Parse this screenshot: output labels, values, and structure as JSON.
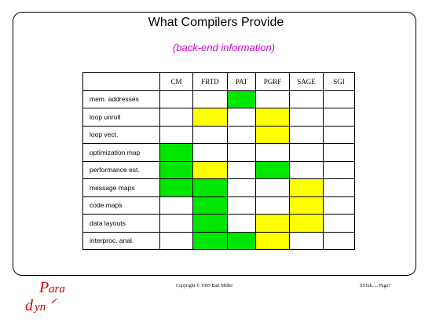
{
  "title": "What Compilers Provide",
  "subtitle": "(back-end information)",
  "columns": [
    "CM",
    "FRTD",
    "PAT",
    "PGRF",
    "SAGE",
    "SGI"
  ],
  "rows": [
    {
      "label": "mem. addresses",
      "cells": [
        "",
        "",
        "green",
        "",
        "",
        ""
      ]
    },
    {
      "label": "loop unroll",
      "cells": [
        "",
        "yellow",
        "",
        "yellow",
        "",
        ""
      ]
    },
    {
      "label": "loop vect.",
      "cells": [
        "",
        "",
        "",
        "yellow",
        "",
        ""
      ]
    },
    {
      "label": "optimization map",
      "cells": [
        "green",
        "",
        "",
        "",
        "",
        ""
      ]
    },
    {
      "label": "performance est.",
      "cells": [
        "green",
        "yellow",
        "",
        "green",
        "",
        ""
      ]
    },
    {
      "label": "message maps",
      "cells": [
        "green",
        "green",
        "",
        "",
        "yellow",
        ""
      ]
    },
    {
      "label": "code maps",
      "cells": [
        "",
        "green",
        "",
        "",
        "yellow",
        ""
      ]
    },
    {
      "label": "data layouts",
      "cells": [
        "",
        "green",
        "",
        "yellow",
        "yellow",
        ""
      ]
    },
    {
      "label": "interproc. anal.",
      "cells": [
        "",
        "green",
        "green",
        "yellow",
        "",
        ""
      ]
    }
  ],
  "colors": {
    "green": "#00e600",
    "yellow": "#ffff00",
    "subtitle": "#cc00cc",
    "logo": "#cc0000"
  },
  "footer": {
    "copyright": "Copyright © 1995 Bart Miller",
    "page": "SSTab..... Page7"
  },
  "logo": {
    "top": "Para",
    "bottom": "dyn"
  }
}
